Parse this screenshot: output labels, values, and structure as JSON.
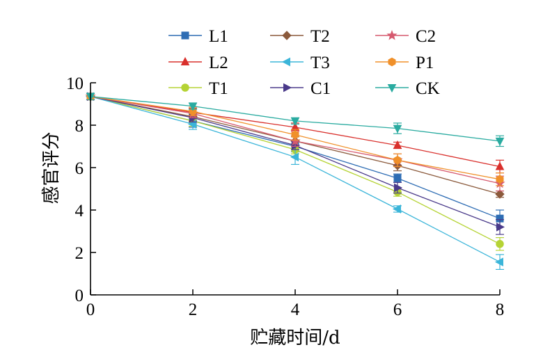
{
  "chart_data": {
    "type": "line",
    "title": "",
    "xlabel": "贮藏时间/d",
    "ylabel": "感官评分",
    "x": [
      0,
      2,
      4,
      6,
      8
    ],
    "xticks": [
      "0",
      "2",
      "4",
      "6",
      "8"
    ],
    "yticks": [
      "0",
      "2",
      "4",
      "6",
      "8",
      "10"
    ],
    "xlim": [
      0,
      8
    ],
    "ylim": [
      0,
      10
    ],
    "grid": false,
    "legend_position": "top",
    "series": [
      {
        "name": "L1",
        "color": "#2e6db4",
        "marker": "square",
        "values": [
          9.35,
          8.2,
          7.0,
          5.5,
          3.6
        ],
        "errors": [
          0.15,
          0.3,
          0.25,
          0.2,
          0.4
        ]
      },
      {
        "name": "L2",
        "color": "#d9302c",
        "marker": "triangle-up",
        "values": [
          9.35,
          8.6,
          7.9,
          7.05,
          6.05
        ],
        "errors": [
          0.15,
          0.2,
          0.2,
          0.15,
          0.3
        ]
      },
      {
        "name": "T1",
        "color": "#b5d334",
        "marker": "circle",
        "values": [
          9.35,
          8.2,
          6.85,
          4.85,
          2.4
        ],
        "errors": [
          0.15,
          0.25,
          0.2,
          0.2,
          0.3
        ]
      },
      {
        "name": "T2",
        "color": "#8b5a3c",
        "marker": "diamond",
        "values": [
          9.35,
          8.4,
          7.25,
          6.1,
          4.75
        ],
        "errors": [
          0.15,
          0.2,
          0.2,
          0.25,
          0.15
        ]
      },
      {
        "name": "T3",
        "color": "#3bb5d9",
        "marker": "triangle-left",
        "values": [
          9.35,
          8.05,
          6.5,
          4.05,
          1.55
        ],
        "errors": [
          0.15,
          0.25,
          0.35,
          0.15,
          0.35
        ]
      },
      {
        "name": "C1",
        "color": "#4a3a8a",
        "marker": "triangle-right",
        "values": [
          9.35,
          8.35,
          7.05,
          5.05,
          3.2
        ],
        "errors": [
          0.15,
          0.2,
          0.2,
          0.25,
          0.35
        ]
      },
      {
        "name": "C2",
        "color": "#d65a6f",
        "marker": "star",
        "values": [
          9.35,
          8.55,
          7.25,
          6.35,
          5.25
        ],
        "errors": [
          0.15,
          0.2,
          0.25,
          0.3,
          0.35
        ]
      },
      {
        "name": "P1",
        "color": "#f0902a",
        "marker": "hexagon",
        "values": [
          9.35,
          8.65,
          7.55,
          6.35,
          5.45
        ],
        "errors": [
          0.15,
          0.2,
          0.25,
          0.3,
          0.3
        ]
      },
      {
        "name": "CK",
        "color": "#2aaba0",
        "marker": "triangle-down",
        "values": [
          9.35,
          8.9,
          8.2,
          7.85,
          7.25
        ],
        "errors": [
          0.15,
          0.15,
          0.15,
          0.25,
          0.25
        ]
      }
    ]
  }
}
